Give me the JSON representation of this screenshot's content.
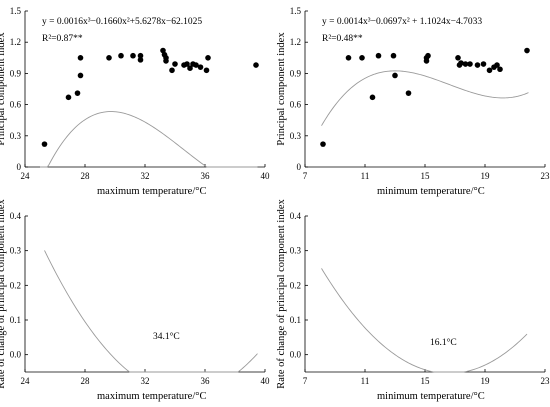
{
  "chart_data": [
    {
      "type": "scatter",
      "xlabel": "maximum temperature/°C",
      "ylabel": "Principal component index",
      "xlim": [
        24,
        40
      ],
      "ylim": [
        0,
        1.5
      ],
      "xticks": [
        "24",
        "28",
        "32",
        "36",
        "40"
      ],
      "yticks": [
        "0",
        "0.3",
        "0.6",
        "0.9",
        "1.2",
        "1.5"
      ],
      "annotations": [
        "y = 0.0016x³−0.1660x²+5.6278x−62.1025",
        "R²=0.87**"
      ],
      "fit": {
        "a3": 0.0016,
        "a2": -0.166,
        "a1": 5.6278,
        "a0": -62.1025
      },
      "fit_xrange": [
        25.0,
        39.5
      ],
      "points": [
        [
          25.3,
          0.22
        ],
        [
          26.9,
          0.67
        ],
        [
          27.5,
          0.71
        ],
        [
          27.7,
          0.88
        ],
        [
          27.7,
          1.05
        ],
        [
          29.6,
          1.05
        ],
        [
          30.4,
          1.07
        ],
        [
          31.2,
          1.07
        ],
        [
          31.7,
          1.03
        ],
        [
          31.7,
          1.07
        ],
        [
          33.2,
          1.12
        ],
        [
          33.3,
          1.08
        ],
        [
          33.4,
          1.05
        ],
        [
          33.4,
          1.02
        ],
        [
          33.8,
          0.93
        ],
        [
          34.0,
          0.99
        ],
        [
          34.6,
          0.98
        ],
        [
          34.8,
          0.99
        ],
        [
          35.0,
          0.95
        ],
        [
          35.2,
          0.99
        ],
        [
          35.4,
          0.98
        ],
        [
          35.7,
          0.96
        ],
        [
          36.1,
          0.93
        ],
        [
          36.2,
          1.05
        ],
        [
          39.4,
          0.98
        ]
      ]
    },
    {
      "type": "scatter",
      "xlabel": "minimum temperature/°C",
      "ylabel": "Principal component index",
      "xlim": [
        7,
        23
      ],
      "ylim": [
        0,
        1.5
      ],
      "xticks": [
        "7",
        "11",
        "15",
        "19",
        "23"
      ],
      "yticks": [
        "0",
        "0.3",
        "0.6",
        "0.9",
        "1.2",
        "1.5"
      ],
      "annotations": [
        "y = 0.0014x³−0.0697x² + 1.1024x−4.7033",
        "R²=0.48**"
      ],
      "fit": {
        "a3": 0.0014,
        "a2": -0.0697,
        "a1": 1.1024,
        "a0": -4.7033
      },
      "fit_xrange": [
        8.1,
        21.9
      ],
      "points": [
        [
          8.2,
          0.22
        ],
        [
          9.9,
          1.05
        ],
        [
          10.8,
          1.05
        ],
        [
          11.5,
          0.67
        ],
        [
          11.9,
          1.07
        ],
        [
          12.9,
          1.07
        ],
        [
          13.0,
          0.88
        ],
        [
          13.9,
          0.71
        ],
        [
          15.1,
          1.05
        ],
        [
          15.1,
          1.02
        ],
        [
          15.2,
          1.07
        ],
        [
          17.2,
          1.05
        ],
        [
          17.3,
          0.98
        ],
        [
          17.4,
          1.0
        ],
        [
          17.7,
          0.99
        ],
        [
          18.0,
          0.99
        ],
        [
          18.5,
          0.98
        ],
        [
          18.9,
          0.99
        ],
        [
          19.3,
          0.93
        ],
        [
          19.6,
          0.96
        ],
        [
          19.8,
          0.98
        ],
        [
          20.0,
          0.94
        ],
        [
          21.8,
          1.12
        ]
      ]
    },
    {
      "type": "line",
      "xlabel": "maximum temperature/°C",
      "ylabel": "Rate of change of principal component index",
      "xlim": [
        24,
        40
      ],
      "ylim": [
        -0.05,
        0.4
      ],
      "xticks": [
        "24",
        "28",
        "32",
        "36",
        "40"
      ],
      "yticks": [
        "0.0",
        "0.1",
        "0.2",
        "0.3",
        "0.4"
      ],
      "annotations": [
        "34.1°C"
      ],
      "derivative_of": {
        "a3": 0.0016,
        "a2": -0.166,
        "a1": 5.6278
      },
      "x_range": [
        25.3,
        39.5
      ]
    },
    {
      "type": "line",
      "xlabel": "minimum temperature/°C",
      "ylabel": "Rate of change of principal component index",
      "xlim": [
        7,
        23
      ],
      "ylim": [
        -0.05,
        0.4
      ],
      "xticks": [
        "7",
        "11",
        "15",
        "19",
        "23"
      ],
      "yticks": [
        "0.0",
        "0.1",
        "0.2",
        "0.3",
        "0.4"
      ],
      "annotations": [
        "16.1°C"
      ],
      "derivative_of": {
        "a3": 0.0014,
        "a2": -0.0697,
        "a1": 1.1024
      },
      "x_range": [
        8.1,
        21.8
      ]
    }
  ]
}
